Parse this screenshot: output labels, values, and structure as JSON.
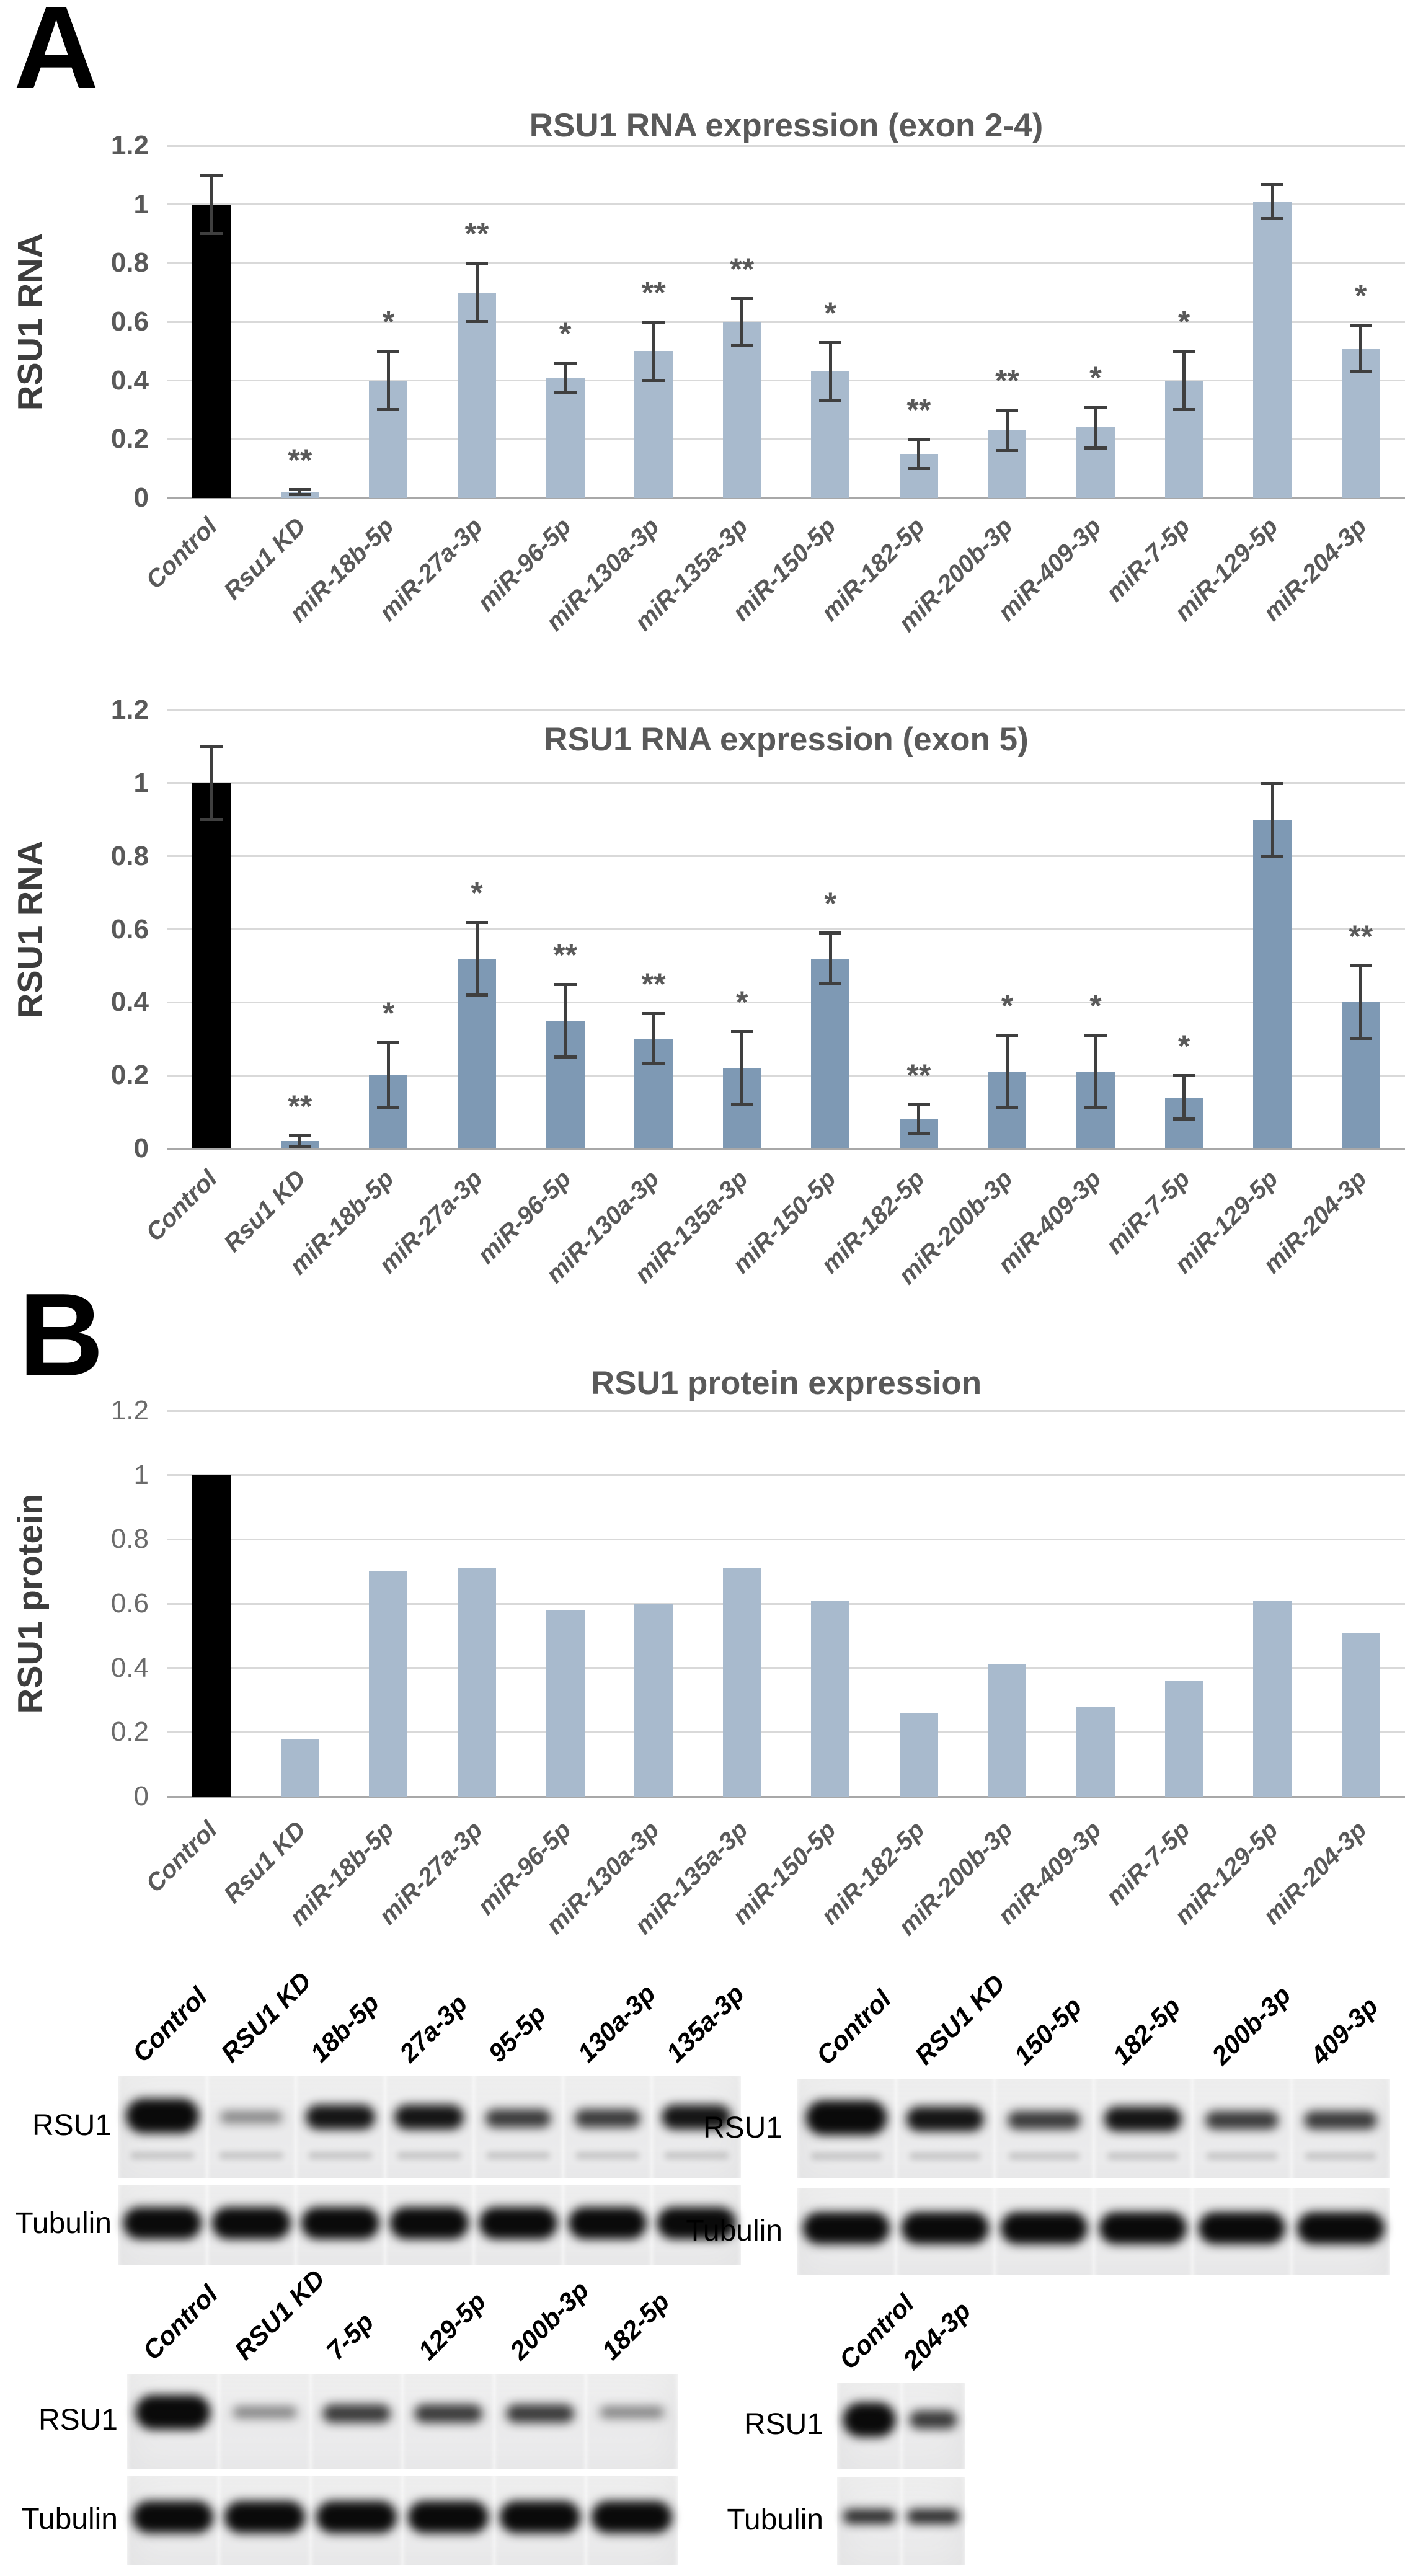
{
  "panels": {
    "a": "A",
    "b": "B"
  },
  "chart_data": [
    {
      "type": "bar",
      "title": "RSU1 RNA expression (exon 2-4)",
      "ylabel": "RSU1 RNA",
      "xlabel": "",
      "ylim": [
        0,
        1.2
      ],
      "yticks": [
        "1.2",
        "1",
        "0.8",
        "0.6",
        "0.4",
        "0.2",
        "0"
      ],
      "grid": true,
      "legend": "none",
      "bar_color": "#a8bacd",
      "control_color": "#000000",
      "error_color": "#3f3f3f",
      "categories": [
        "Control",
        "Rsu1 KD",
        "miR-18b-5p",
        "miR-27a-3p",
        "miR-96-5p",
        "miR-130a-3p",
        "miR-135a-3p",
        "miR-150-5p",
        "miR-182-5p",
        "miR-200b-3p",
        "miR-409-3p",
        "miR-7-5p",
        "miR-129-5p",
        "miR-204-3p"
      ],
      "values": [
        1.0,
        0.02,
        0.4,
        0.7,
        0.41,
        0.5,
        0.6,
        0.43,
        0.15,
        0.23,
        0.24,
        0.4,
        1.01,
        0.51
      ],
      "errors": [
        0.1,
        0.01,
        0.1,
        0.1,
        0.05,
        0.1,
        0.08,
        0.1,
        0.05,
        0.07,
        0.07,
        0.1,
        0.06,
        0.08
      ],
      "sig": [
        "",
        "**",
        "*",
        "**",
        "*",
        "**",
        "**",
        "*",
        "**",
        "**",
        "*",
        "*",
        "",
        "*"
      ]
    },
    {
      "type": "bar",
      "title": "RSU1 RNA expression (exon 5)",
      "ylabel": "RSU1 RNA",
      "xlabel": "",
      "ylim": [
        0,
        1.2
      ],
      "yticks": [
        "1.2",
        "1",
        "0.8",
        "0.6",
        "0.4",
        "0.2",
        "0"
      ],
      "grid": true,
      "legend": "none",
      "bar_color": "#7e99b4",
      "control_color": "#000000",
      "error_color": "#3f3f3f",
      "categories": [
        "Control",
        "Rsu1 KD",
        "miR-18b-5p",
        "miR-27a-3p",
        "miR-96-5p",
        "miR-130a-3p",
        "miR-135a-3p",
        "miR-150-5p",
        "miR-182-5p",
        "miR-200b-3p",
        "miR-409-3p",
        "miR-7-5p",
        "miR-129-5p",
        "miR-204-3p"
      ],
      "values": [
        1.0,
        0.02,
        0.2,
        0.52,
        0.35,
        0.3,
        0.22,
        0.52,
        0.08,
        0.21,
        0.21,
        0.14,
        0.9,
        0.4
      ],
      "errors": [
        0.1,
        0.015,
        0.09,
        0.1,
        0.1,
        0.07,
        0.1,
        0.07,
        0.04,
        0.1,
        0.1,
        0.06,
        0.1,
        0.1
      ],
      "sig": [
        "",
        "**",
        "*",
        "*",
        "**",
        "**",
        "*",
        "*",
        "**",
        "*",
        "*",
        "*",
        "",
        "**"
      ]
    },
    {
      "type": "bar",
      "title": "RSU1 protein expression",
      "ylabel": "RSU1 protein",
      "xlabel": "",
      "ylim": [
        0,
        1.2
      ],
      "yticks": [
        "1.2",
        "1",
        "0.8",
        "0.6",
        "0.4",
        "0.2",
        "0"
      ],
      "grid": true,
      "legend": "none",
      "bar_color": "#a8bacd",
      "control_color": "#000000",
      "error_color": null,
      "categories": [
        "Control",
        "Rsu1 KD",
        "miR-18b-5p",
        "miR-27a-3p",
        "miR-96-5p",
        "miR-130a-3p",
        "miR-135a-3p",
        "miR-150-5p",
        "miR-182-5p",
        "miR-200b-3p",
        "miR-409-3p",
        "miR-7-5p",
        "miR-129-5p",
        "miR-204-3p"
      ],
      "values": [
        1.0,
        0.18,
        0.7,
        0.71,
        0.58,
        0.6,
        0.71,
        0.61,
        0.26,
        0.41,
        0.28,
        0.36,
        0.61,
        0.51
      ],
      "errors": null,
      "sig": null
    }
  ],
  "blots": [
    {
      "lanes": [
        "Control",
        "RSU1 KD",
        "18b-5p",
        "27a-3p",
        "95-5p",
        "130a-3p",
        "135a-3p"
      ],
      "rows": [
        {
          "label": "RSU1",
          "secondary": true,
          "bands": [
            "xstrong",
            "faint",
            "strong",
            "strong",
            "medium",
            "medium",
            "strong"
          ]
        },
        {
          "label": "Tubulin",
          "secondary": false,
          "bands": [
            "strong",
            "strong",
            "strong",
            "strong",
            "strong",
            "strong",
            "strong"
          ]
        }
      ]
    },
    {
      "lanes": [
        "Control",
        "RSU1 KD",
        "150-5p",
        "182-5p",
        "200b-3p",
        "409-3p"
      ],
      "rows": [
        {
          "label": "RSU1",
          "secondary": true,
          "bands": [
            "xstrong",
            "strong",
            "medium",
            "strong",
            "medium",
            "medium"
          ]
        },
        {
          "label": "Tubulin",
          "secondary": false,
          "bands": [
            "strong",
            "strong",
            "strong",
            "strong",
            "strong",
            "strong"
          ]
        }
      ]
    },
    {
      "lanes": [
        "Control",
        "RSU1 KD",
        "7-5p",
        "129-5p",
        "200b-3p",
        "182-5p"
      ],
      "rows": [
        {
          "label": "RSU1",
          "secondary": false,
          "bands": [
            "xstrong",
            "faint",
            "medium",
            "medium",
            "medium",
            "faint"
          ]
        },
        {
          "label": "Tubulin",
          "secondary": false,
          "bands": [
            "strong",
            "strong",
            "strong",
            "strong",
            "strong",
            "strong"
          ]
        }
      ]
    },
    {
      "lanes": [
        "Control",
        "204-3p"
      ],
      "rows": [
        {
          "label": "RSU1",
          "secondary": false,
          "bands": [
            "xstrong",
            "medium"
          ]
        },
        {
          "label": "Tubulin",
          "secondary": false,
          "bands": [
            "medium",
            "medium"
          ]
        }
      ]
    }
  ]
}
